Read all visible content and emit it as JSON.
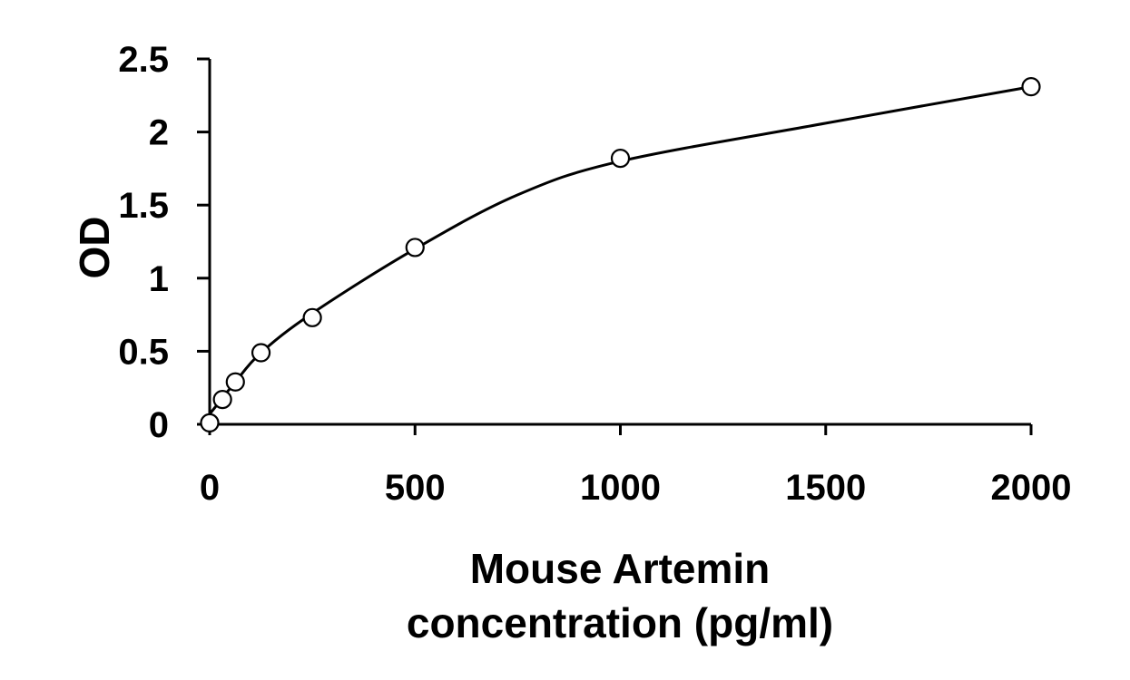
{
  "chart_data": {
    "type": "scatter",
    "title": "",
    "xlabel_lines": [
      "Mouse Artemin",
      "concentration (pg/ml)"
    ],
    "ylabel": "OD",
    "xlim": [
      0,
      2000
    ],
    "ylim": [
      0,
      2.5
    ],
    "x_ticks": [
      "0",
      "500",
      "1000",
      "1500",
      "2000"
    ],
    "y_ticks": [
      "0",
      "0.5",
      "1",
      "1.5",
      "2",
      "2.5"
    ],
    "grid": false,
    "legend": "none",
    "series": [
      {
        "x": [
          0,
          31.25,
          62.5,
          125,
          250,
          500,
          1000,
          2000
        ],
        "y": [
          0.01,
          0.17,
          0.29,
          0.49,
          0.73,
          1.21,
          1.82,
          2.31
        ]
      }
    ],
    "fit_curve": {
      "x": [
        0,
        31.25,
        62.5,
        125,
        250,
        500,
        750,
        1000,
        1500,
        2000
      ],
      "y": [
        0.07,
        0.18,
        0.29,
        0.49,
        0.76,
        1.2,
        1.57,
        1.8,
        2.06,
        2.31
      ]
    }
  }
}
